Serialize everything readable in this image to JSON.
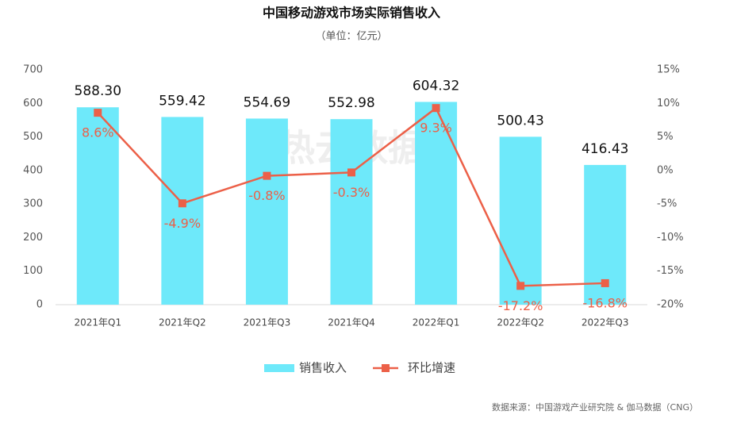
{
  "chart_data": {
    "type": "bar_line",
    "title": "中国移动游戏市场实际销售收入",
    "subtitle": "（单位：亿元）",
    "source": "数据来源：中国游戏产业研究院 & 伽马数据（CNG）",
    "watermark": "热云数据",
    "categories": [
      "2021年Q1",
      "2021年Q2",
      "2021年Q3",
      "2021年Q4",
      "2022年Q1",
      "2022年Q2",
      "2022年Q3"
    ],
    "series": [
      {
        "name": "销售收入",
        "color": "#6ee9fa",
        "kind": "bar",
        "values": [
          588.3,
          559.42,
          554.69,
          552.98,
          604.32,
          500.43,
          416.43
        ],
        "value_labels": [
          "588.30",
          "559.42",
          "554.69",
          "552.98",
          "604.32",
          "500.43",
          "416.43"
        ]
      },
      {
        "name": "环比增速",
        "color": "#ec6048",
        "kind": "line",
        "axis": "y2",
        "values": [
          8.6,
          -4.9,
          -0.8,
          -0.3,
          9.3,
          -17.2,
          -16.8
        ],
        "value_labels": [
          "8.6%",
          "-4.9%",
          "-0.8%",
          "-0.3%",
          "9.3%",
          "-17.2%",
          "-16.8%"
        ]
      }
    ],
    "ylim": [
      0,
      700
    ],
    "yticks": [
      0,
      100,
      200,
      300,
      400,
      500,
      600,
      700
    ],
    "y2lim": [
      -20,
      15
    ],
    "y2ticks": [
      {
        "value": -20,
        "label": "-20%"
      },
      {
        "value": -15,
        "label": "-15%"
      },
      {
        "value": -10,
        "label": "-10%"
      },
      {
        "value": -5,
        "label": "-5%"
      },
      {
        "value": 0,
        "label": "0%"
      },
      {
        "value": 5,
        "label": "5%"
      },
      {
        "value": 10,
        "label": "10%"
      },
      {
        "value": 15,
        "label": "15%"
      }
    ],
    "grid": false,
    "legend": "bottom"
  }
}
